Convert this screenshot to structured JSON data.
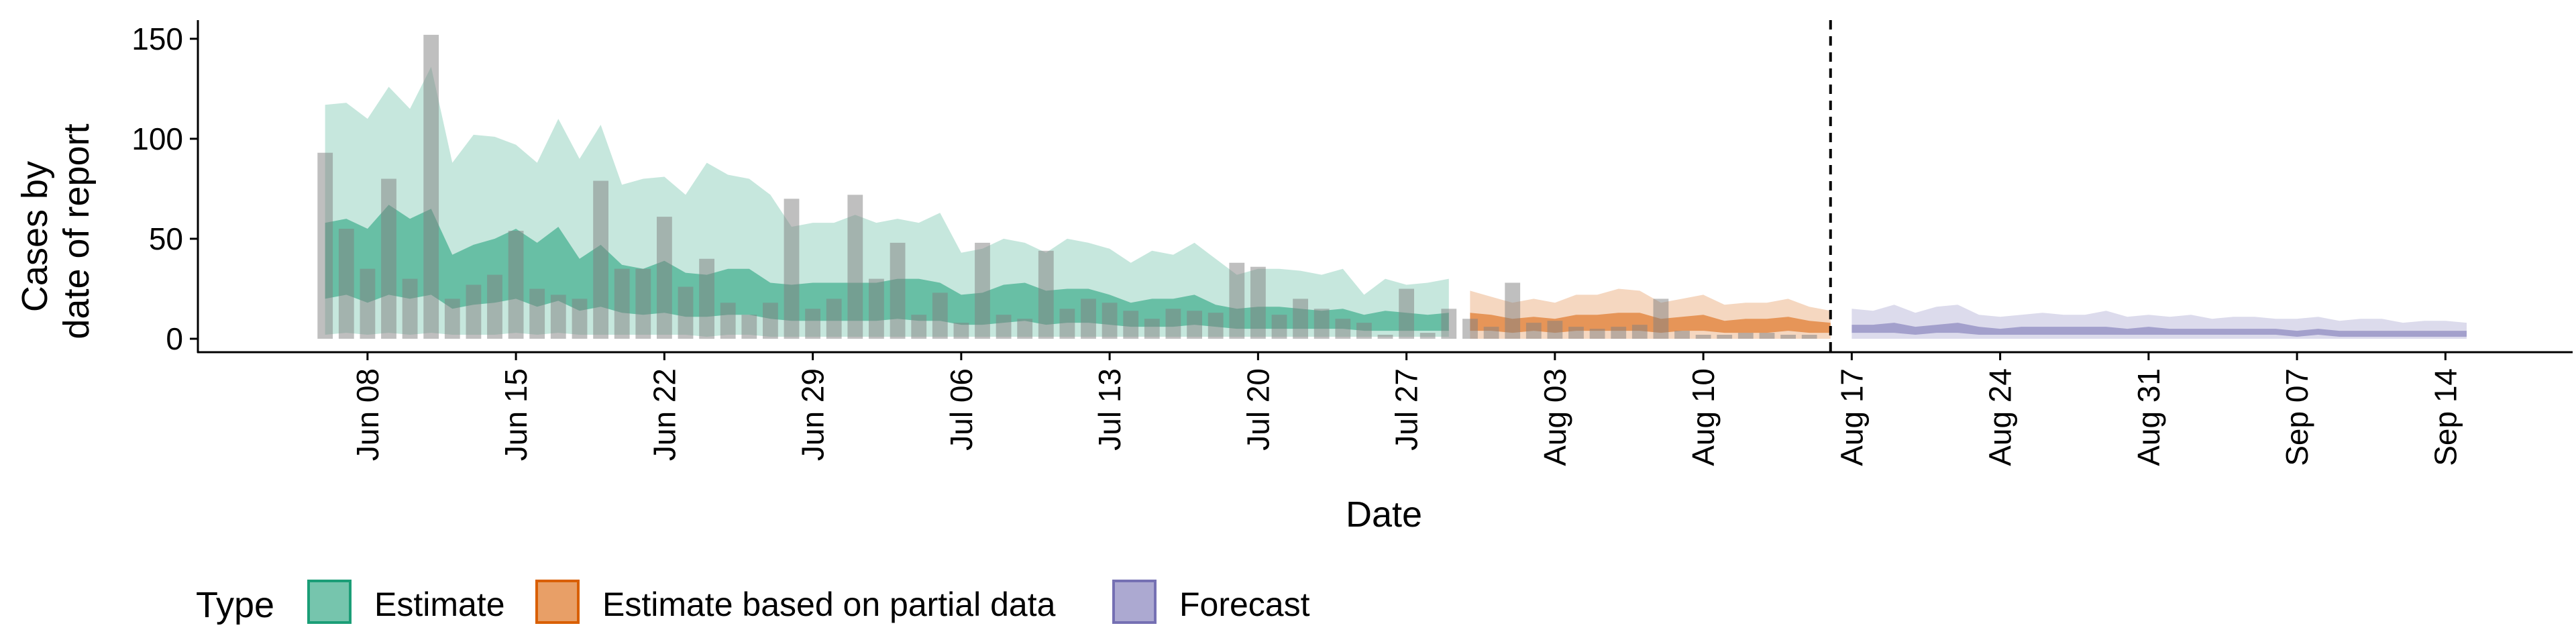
{
  "chart_data": {
    "type": "area",
    "xlabel": "Date",
    "ylabel_lines": [
      "Cases by",
      "date of report"
    ],
    "ylim": [
      0,
      160
    ],
    "yticks": [
      0,
      50,
      100,
      150
    ],
    "xticks": [
      "2020-06-08",
      "2020-06-15",
      "2020-06-22",
      "2020-06-29",
      "2020-07-06",
      "2020-07-13",
      "2020-07-20",
      "2020-07-27",
      "2020-08-03",
      "2020-08-10",
      "2020-08-17",
      "2020-08-24",
      "2020-08-31",
      "2020-09-07",
      "2020-09-14"
    ],
    "xtick_labels": [
      "Jun 08",
      "Jun 15",
      "Jun 22",
      "Jun 29",
      "Jul 06",
      "Jul 13",
      "Jul 20",
      "Jul 27",
      "Aug 03",
      "Aug 10",
      "Aug 17",
      "Aug 24",
      "Aug 31",
      "Sep 07",
      "Sep 14"
    ],
    "xlim": [
      "2020-05-31",
      "2020-09-20"
    ],
    "vline": "2020-08-16",
    "grid": false,
    "legend": {
      "position": "bottom",
      "title": "Type",
      "items": [
        {
          "label": "Estimate",
          "color": "#1b9e77"
        },
        {
          "label": "Estimate based on partial data",
          "color": "#d95f02"
        },
        {
          "label": "Forecast",
          "color": "#7570b3"
        }
      ]
    },
    "reported_cases": {
      "color": "#808080",
      "dates": [
        "2020-06-06",
        "2020-06-07",
        "2020-06-08",
        "2020-06-09",
        "2020-06-10",
        "2020-06-11",
        "2020-06-12",
        "2020-06-13",
        "2020-06-14",
        "2020-06-15",
        "2020-06-16",
        "2020-06-17",
        "2020-06-18",
        "2020-06-19",
        "2020-06-20",
        "2020-06-21",
        "2020-06-22",
        "2020-06-23",
        "2020-06-24",
        "2020-06-25",
        "2020-06-26",
        "2020-06-27",
        "2020-06-28",
        "2020-06-29",
        "2020-06-30",
        "2020-07-01",
        "2020-07-02",
        "2020-07-03",
        "2020-07-04",
        "2020-07-05",
        "2020-07-06",
        "2020-07-07",
        "2020-07-08",
        "2020-07-09",
        "2020-07-10",
        "2020-07-11",
        "2020-07-12",
        "2020-07-13",
        "2020-07-14",
        "2020-07-15",
        "2020-07-16",
        "2020-07-17",
        "2020-07-18",
        "2020-07-19",
        "2020-07-20",
        "2020-07-21",
        "2020-07-22",
        "2020-07-23",
        "2020-07-24",
        "2020-07-25",
        "2020-07-26",
        "2020-07-27",
        "2020-07-28",
        "2020-07-29",
        "2020-07-30",
        "2020-07-31",
        "2020-08-01",
        "2020-08-02",
        "2020-08-03",
        "2020-08-04",
        "2020-08-05",
        "2020-08-06",
        "2020-08-07",
        "2020-08-08",
        "2020-08-09",
        "2020-08-10",
        "2020-08-11",
        "2020-08-12",
        "2020-08-13",
        "2020-08-14",
        "2020-08-15"
      ],
      "values": [
        93,
        55,
        35,
        80,
        30,
        152,
        20,
        27,
        32,
        54,
        25,
        22,
        20,
        79,
        35,
        35,
        61,
        26,
        40,
        18,
        12,
        18,
        70,
        15,
        20,
        72,
        30,
        48,
        12,
        23,
        8,
        48,
        12,
        10,
        44,
        15,
        20,
        18,
        14,
        10,
        15,
        14,
        13,
        38,
        36,
        12,
        20,
        15,
        10,
        8,
        2,
        25,
        3,
        15,
        10,
        6,
        28,
        8,
        9,
        6,
        5,
        6,
        7,
        20,
        4,
        2,
        2,
        3,
        3,
        2,
        2
      ]
    },
    "series": [
      {
        "name": "Estimate",
        "color": "#1b9e77",
        "dates": [
          "2020-06-06",
          "2020-06-07",
          "2020-06-08",
          "2020-06-09",
          "2020-06-10",
          "2020-06-11",
          "2020-06-12",
          "2020-06-13",
          "2020-06-14",
          "2020-06-15",
          "2020-06-16",
          "2020-06-17",
          "2020-06-18",
          "2020-06-19",
          "2020-06-20",
          "2020-06-21",
          "2020-06-22",
          "2020-06-23",
          "2020-06-24",
          "2020-06-25",
          "2020-06-26",
          "2020-06-27",
          "2020-06-28",
          "2020-06-29",
          "2020-06-30",
          "2020-07-01",
          "2020-07-02",
          "2020-07-03",
          "2020-07-04",
          "2020-07-05",
          "2020-07-06",
          "2020-07-07",
          "2020-07-08",
          "2020-07-09",
          "2020-07-10",
          "2020-07-11",
          "2020-07-12",
          "2020-07-13",
          "2020-07-14",
          "2020-07-15",
          "2020-07-16",
          "2020-07-17",
          "2020-07-18",
          "2020-07-19",
          "2020-07-20",
          "2020-07-21",
          "2020-07-22",
          "2020-07-23",
          "2020-07-24",
          "2020-07-25",
          "2020-07-26",
          "2020-07-27",
          "2020-07-28",
          "2020-07-29"
        ],
        "upper90": [
          117,
          118,
          110,
          126,
          115,
          136,
          88,
          102,
          101,
          97,
          88,
          110,
          90,
          107,
          77,
          80,
          81,
          72,
          88,
          82,
          80,
          72,
          56,
          58,
          58,
          62,
          58,
          60,
          58,
          63,
          43,
          45,
          50,
          48,
          43,
          50,
          48,
          45,
          38,
          44,
          42,
          48,
          40,
          32,
          35,
          35,
          34,
          32,
          35,
          22,
          30,
          27,
          28,
          30
        ],
        "upper50": [
          58,
          60,
          55,
          67,
          60,
          65,
          42,
          47,
          50,
          55,
          48,
          56,
          40,
          47,
          37,
          35,
          39,
          33,
          32,
          35,
          35,
          28,
          27,
          28,
          28,
          28,
          28,
          30,
          30,
          28,
          22,
          23,
          27,
          28,
          24,
          25,
          25,
          22,
          18,
          20,
          20,
          22,
          17,
          15,
          16,
          16,
          15,
          14,
          15,
          12,
          14,
          13,
          12,
          13
        ],
        "lower50": [
          20,
          22,
          18,
          22,
          20,
          22,
          15,
          17,
          18,
          20,
          16,
          19,
          14,
          16,
          13,
          12,
          13,
          11,
          11,
          12,
          12,
          10,
          9,
          9,
          9,
          9,
          9,
          10,
          9,
          9,
          7,
          7,
          8,
          9,
          7,
          8,
          8,
          7,
          6,
          6,
          6,
          7,
          6,
          5,
          5,
          5,
          5,
          5,
          5,
          4,
          4,
          4,
          4,
          4
        ],
        "lower90": [
          2,
          3,
          2,
          3,
          2,
          3,
          2,
          2,
          2,
          3,
          2,
          3,
          2,
          2,
          2,
          2,
          2,
          2,
          1,
          2,
          2,
          1,
          1,
          1,
          1,
          1,
          1,
          1,
          1,
          1,
          1,
          1,
          1,
          1,
          1,
          1,
          1,
          1,
          1,
          1,
          1,
          1,
          1,
          1,
          1,
          1,
          1,
          1,
          1,
          1,
          1,
          1,
          1,
          1
        ]
      },
      {
        "name": "Estimate based on partial data",
        "color": "#d95f02",
        "dates": [
          "2020-07-30",
          "2020-07-31",
          "2020-08-01",
          "2020-08-02",
          "2020-08-03",
          "2020-08-04",
          "2020-08-05",
          "2020-08-06",
          "2020-08-07",
          "2020-08-08",
          "2020-08-09",
          "2020-08-10",
          "2020-08-11",
          "2020-08-12",
          "2020-08-13",
          "2020-08-14",
          "2020-08-15",
          "2020-08-16"
        ],
        "upper90": [
          24,
          21,
          18,
          20,
          18,
          22,
          22,
          25,
          24,
          18,
          20,
          22,
          17,
          18,
          18,
          20,
          16,
          14
        ],
        "upper50": [
          13,
          12,
          10,
          11,
          10,
          12,
          12,
          13,
          13,
          10,
          11,
          12,
          9,
          10,
          10,
          11,
          9,
          8
        ],
        "lower50": [
          4,
          4,
          3,
          4,
          3,
          4,
          4,
          4,
          4,
          3,
          4,
          4,
          3,
          3,
          3,
          4,
          3,
          3
        ],
        "lower90": [
          0,
          0,
          0,
          0,
          0,
          0,
          0,
          0,
          0,
          0,
          0,
          0,
          0,
          0,
          0,
          0,
          0,
          0
        ]
      },
      {
        "name": "Forecast",
        "color": "#7570b3",
        "dates": [
          "2020-08-17",
          "2020-08-18",
          "2020-08-19",
          "2020-08-20",
          "2020-08-21",
          "2020-08-22",
          "2020-08-23",
          "2020-08-24",
          "2020-08-25",
          "2020-08-26",
          "2020-08-27",
          "2020-08-28",
          "2020-08-29",
          "2020-08-30",
          "2020-08-31",
          "2020-09-01",
          "2020-09-02",
          "2020-09-03",
          "2020-09-04",
          "2020-09-05",
          "2020-09-06",
          "2020-09-07",
          "2020-09-08",
          "2020-09-09",
          "2020-09-10",
          "2020-09-11",
          "2020-09-12",
          "2020-09-13",
          "2020-09-14",
          "2020-09-15"
        ],
        "upper90": [
          15,
          14,
          17,
          13,
          16,
          17,
          12,
          11,
          12,
          13,
          12,
          12,
          14,
          11,
          12,
          11,
          12,
          10,
          11,
          11,
          10,
          10,
          11,
          9,
          10,
          10,
          8,
          9,
          9,
          8
        ],
        "upper50": [
          7,
          7,
          8,
          6,
          7,
          8,
          6,
          5,
          6,
          6,
          6,
          6,
          6,
          5,
          6,
          5,
          5,
          5,
          5,
          5,
          5,
          4,
          5,
          4,
          4,
          4,
          4,
          4,
          4,
          4
        ],
        "lower50": [
          3,
          3,
          3,
          2,
          3,
          3,
          2,
          2,
          2,
          2,
          2,
          2,
          2,
          2,
          2,
          2,
          2,
          2,
          2,
          2,
          2,
          1,
          2,
          1,
          1,
          1,
          1,
          1,
          1,
          1
        ],
        "lower90": [
          0,
          0,
          0,
          0,
          0,
          0,
          0,
          0,
          0,
          0,
          0,
          0,
          0,
          0,
          0,
          0,
          0,
          0,
          0,
          0,
          0,
          0,
          0,
          0,
          0,
          0,
          0,
          0,
          0,
          0
        ]
      }
    ]
  }
}
